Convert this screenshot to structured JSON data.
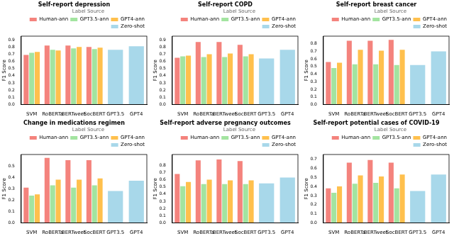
{
  "chart_data": [
    {
      "type": "bar",
      "title": "Self-report depression",
      "y_label": "F1 Score",
      "legend_title": "Label Source",
      "legend": "upper right",
      "grid": false,
      "categories": [
        "SVM",
        "RoBERTa",
        "BERTweet",
        "SocBERT",
        "GPT3.5",
        "GPT4"
      ],
      "series": [
        {
          "name": "Human-ann",
          "color": "#f4837d",
          "values": [
            0.69,
            0.82,
            0.82,
            0.8,
            null,
            null
          ]
        },
        {
          "name": "GPT3.5-ann",
          "color": "#a3e4a0",
          "values": [
            0.72,
            0.76,
            0.78,
            0.77,
            null,
            null
          ]
        },
        {
          "name": "GPT4-ann",
          "color": "#ffc04d",
          "values": [
            0.73,
            0.75,
            0.8,
            0.79,
            null,
            null
          ]
        },
        {
          "name": "Zero-shot",
          "color": "#a8d8ea",
          "values": [
            null,
            null,
            null,
            null,
            0.76,
            0.81
          ]
        }
      ],
      "ylim": [
        0,
        0.95
      ],
      "yticks": [
        {
          "value": 0,
          "label": "0.0"
        },
        {
          "value": 0.1,
          "label": "0.1"
        },
        {
          "value": 0.2,
          "label": "0.2"
        },
        {
          "value": 0.3,
          "label": "0.3"
        },
        {
          "value": 0.4,
          "label": "0.4"
        },
        {
          "value": 0.5,
          "label": "0.5"
        },
        {
          "value": 0.6,
          "label": "0.6"
        },
        {
          "value": 0.7,
          "label": "0.7"
        },
        {
          "value": 0.8,
          "label": "0.8"
        },
        {
          "value": 0.9,
          "label": "0.9"
        }
      ]
    },
    {
      "type": "bar",
      "title": "Self-report COPD",
      "y_label": "F1 Score",
      "legend_title": "Label Source",
      "legend": "upper right",
      "grid": false,
      "categories": [
        "SVM",
        "RoBERTa",
        "BERTweet",
        "SocBERT",
        "GPT3.5",
        "GPT4"
      ],
      "series": [
        {
          "name": "Human-ann",
          "color": "#f4837d",
          "values": [
            0.65,
            0.87,
            0.87,
            0.83,
            null,
            null
          ]
        },
        {
          "name": "GPT3.5-ann",
          "color": "#a3e4a0",
          "values": [
            0.67,
            0.66,
            0.66,
            0.67,
            null,
            null
          ]
        },
        {
          "name": "GPT4-ann",
          "color": "#ffc04d",
          "values": [
            0.68,
            0.7,
            0.71,
            0.7,
            null,
            null
          ]
        },
        {
          "name": "Zero-shot",
          "color": "#a8d8ea",
          "values": [
            null,
            null,
            null,
            null,
            0.64,
            0.76
          ]
        }
      ],
      "ylim": [
        0,
        0.95
      ],
      "yticks": [
        {
          "value": 0,
          "label": "0.0"
        },
        {
          "value": 0.1,
          "label": "0.1"
        },
        {
          "value": 0.2,
          "label": "0.2"
        },
        {
          "value": 0.3,
          "label": "0.3"
        },
        {
          "value": 0.4,
          "label": "0.4"
        },
        {
          "value": 0.5,
          "label": "0.5"
        },
        {
          "value": 0.6,
          "label": "0.6"
        },
        {
          "value": 0.7,
          "label": "0.7"
        },
        {
          "value": 0.8,
          "label": "0.8"
        },
        {
          "value": 0.9,
          "label": "0.9"
        }
      ]
    },
    {
      "type": "bar",
      "title": "Self-report breast cancer",
      "y_label": "F1 Score",
      "legend_title": "Label Source",
      "legend": "upper right",
      "grid": false,
      "categories": [
        "SVM",
        "RoBERTa",
        "BERTweet",
        "SocBERT",
        "GPT3.5",
        "GPT4"
      ],
      "series": [
        {
          "name": "Human-ann",
          "color": "#f4837d",
          "values": [
            0.56,
            0.84,
            0.84,
            0.85,
            null,
            null
          ]
        },
        {
          "name": "GPT3.5-ann",
          "color": "#a3e4a0",
          "values": [
            0.48,
            0.53,
            0.53,
            0.52,
            null,
            null
          ]
        },
        {
          "name": "GPT4-ann",
          "color": "#ffc04d",
          "values": [
            0.55,
            0.72,
            0.71,
            0.72,
            null,
            null
          ]
        },
        {
          "name": "Zero-shot",
          "color": "#a8d8ea",
          "values": [
            null,
            null,
            null,
            null,
            0.52,
            0.7
          ]
        }
      ],
      "ylim": [
        0,
        0.9
      ],
      "yticks": [
        {
          "value": 0,
          "label": "0.0"
        },
        {
          "value": 0.1,
          "label": "0.1"
        },
        {
          "value": 0.2,
          "label": "0.2"
        },
        {
          "value": 0.3,
          "label": "0.3"
        },
        {
          "value": 0.4,
          "label": "0.4"
        },
        {
          "value": 0.5,
          "label": "0.5"
        },
        {
          "value": 0.6,
          "label": "0.6"
        },
        {
          "value": 0.7,
          "label": "0.7"
        },
        {
          "value": 0.8,
          "label": "0.8"
        }
      ]
    },
    {
      "type": "bar",
      "title": "Change in medications regimen",
      "y_label": "F1 Score",
      "legend_title": "Label Source",
      "legend": "upper right",
      "grid": false,
      "categories": [
        "SVM",
        "RoBERTa",
        "BERTweet",
        "SocBERT",
        "GPT3.5",
        "GPT4"
      ],
      "series": [
        {
          "name": "Human-ann",
          "color": "#f4837d",
          "values": [
            0.31,
            0.57,
            0.55,
            0.55,
            null,
            null
          ]
        },
        {
          "name": "GPT3.5-ann",
          "color": "#a3e4a0",
          "values": [
            0.24,
            0.33,
            0.31,
            0.33,
            null,
            null
          ]
        },
        {
          "name": "GPT4-ann",
          "color": "#ffc04d",
          "values": [
            0.25,
            0.38,
            0.38,
            0.39,
            null,
            null
          ]
        },
        {
          "name": "Zero-shot",
          "color": "#a8d8ea",
          "values": [
            null,
            null,
            null,
            null,
            0.28,
            0.37
          ]
        }
      ],
      "ylim": [
        0,
        0.6
      ],
      "yticks": [
        {
          "value": 0,
          "label": "0.0"
        },
        {
          "value": 0.1,
          "label": "0.1"
        },
        {
          "value": 0.2,
          "label": "0.2"
        },
        {
          "value": 0.3,
          "label": "0.3"
        },
        {
          "value": 0.4,
          "label": "0.4"
        },
        {
          "value": 0.5,
          "label": "0.5"
        }
      ]
    },
    {
      "type": "bar",
      "title": "Self-report adverse pregnancy outcomes",
      "y_label": "F1 Score",
      "legend_title": "Label Source",
      "legend": "upper right",
      "grid": false,
      "categories": [
        "SVM",
        "RoBERTa",
        "BERTweet",
        "SocBERT",
        "GPT3.5",
        "GPT4"
      ],
      "series": [
        {
          "name": "Human-ann",
          "color": "#f4837d",
          "values": [
            0.68,
            0.87,
            0.88,
            0.86,
            null,
            null
          ]
        },
        {
          "name": "GPT3.5-ann",
          "color": "#a3e4a0",
          "values": [
            0.51,
            0.54,
            0.54,
            0.54,
            null,
            null
          ]
        },
        {
          "name": "GPT4-ann",
          "color": "#ffc04d",
          "values": [
            0.57,
            0.6,
            0.59,
            0.59,
            null,
            null
          ]
        },
        {
          "name": "Zero-shot",
          "color": "#a8d8ea",
          "values": [
            null,
            null,
            null,
            null,
            0.55,
            0.63
          ]
        }
      ],
      "ylim": [
        0,
        0.95
      ],
      "yticks": [
        {
          "value": 0,
          "label": "0.0"
        },
        {
          "value": 0.1,
          "label": "0.1"
        },
        {
          "value": 0.2,
          "label": "0.2"
        },
        {
          "value": 0.3,
          "label": "0.3"
        },
        {
          "value": 0.4,
          "label": "0.4"
        },
        {
          "value": 0.5,
          "label": "0.5"
        },
        {
          "value": 0.6,
          "label": "0.6"
        },
        {
          "value": 0.7,
          "label": "0.7"
        },
        {
          "value": 0.8,
          "label": "0.8"
        }
      ]
    },
    {
      "type": "bar",
      "title": "Self-report potential cases of COVID-19",
      "y_label": "F1 Score",
      "legend_title": "Label Source",
      "legend": "upper right",
      "grid": false,
      "categories": [
        "SVM",
        "RoBERTa",
        "BERTweet",
        "SocBERT",
        "GPT3.5",
        "GPT4"
      ],
      "series": [
        {
          "name": "Human-ann",
          "color": "#f4837d",
          "values": [
            0.38,
            0.66,
            0.69,
            0.66,
            null,
            null
          ]
        },
        {
          "name": "GPT3.5-ann",
          "color": "#a3e4a0",
          "values": [
            0.33,
            0.43,
            0.44,
            0.38,
            null,
            null
          ]
        },
        {
          "name": "GPT4-ann",
          "color": "#ffc04d",
          "values": [
            0.4,
            0.52,
            0.51,
            0.53,
            null,
            null
          ]
        },
        {
          "name": "Zero-shot",
          "color": "#a8d8ea",
          "values": [
            null,
            null,
            null,
            null,
            0.35,
            0.53
          ]
        }
      ],
      "ylim": [
        0,
        0.75
      ],
      "yticks": [
        {
          "value": 0,
          "label": "0.0"
        },
        {
          "value": 0.1,
          "label": "0.1"
        },
        {
          "value": 0.2,
          "label": "0.2"
        },
        {
          "value": 0.3,
          "label": "0.3"
        },
        {
          "value": 0.4,
          "label": "0.4"
        },
        {
          "value": 0.5,
          "label": "0.5"
        },
        {
          "value": 0.6,
          "label": "0.6"
        },
        {
          "value": 0.7,
          "label": "0.7"
        }
      ]
    }
  ]
}
